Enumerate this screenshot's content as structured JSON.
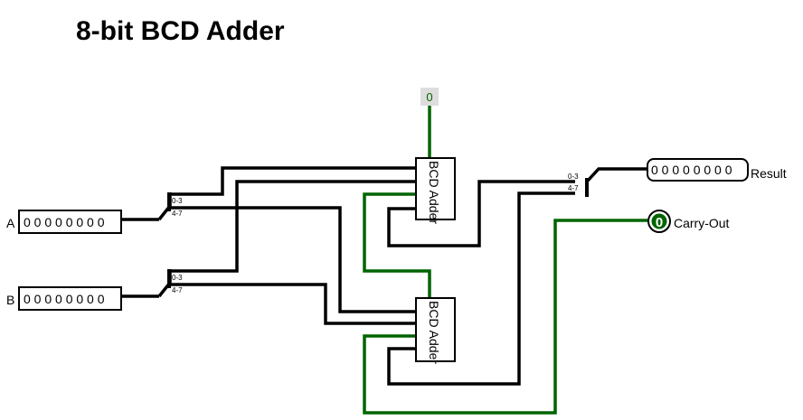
{
  "title": "8-bit BCD Adder",
  "inputs": {
    "a": {
      "label": "A",
      "value": "0 0 0 0 0 0 0 0"
    },
    "b": {
      "label": "B",
      "value": "0 0 0 0 0 0 0 0"
    }
  },
  "constant": {
    "value": "0"
  },
  "splitter_pins": {
    "low": "0-3",
    "high": "4-7"
  },
  "adders": [
    {
      "label": "BCD Adder"
    },
    {
      "label": "BCD Adder"
    }
  ],
  "outputs": {
    "result": {
      "label": "Result",
      "value": "0 0 0 0 0 0 0 0"
    },
    "carry_out": {
      "label": "Carry-Out",
      "value": "0"
    }
  },
  "colors": {
    "wire": "#000000",
    "active_wire": "#006400",
    "constant_bg": "#dddddd"
  }
}
